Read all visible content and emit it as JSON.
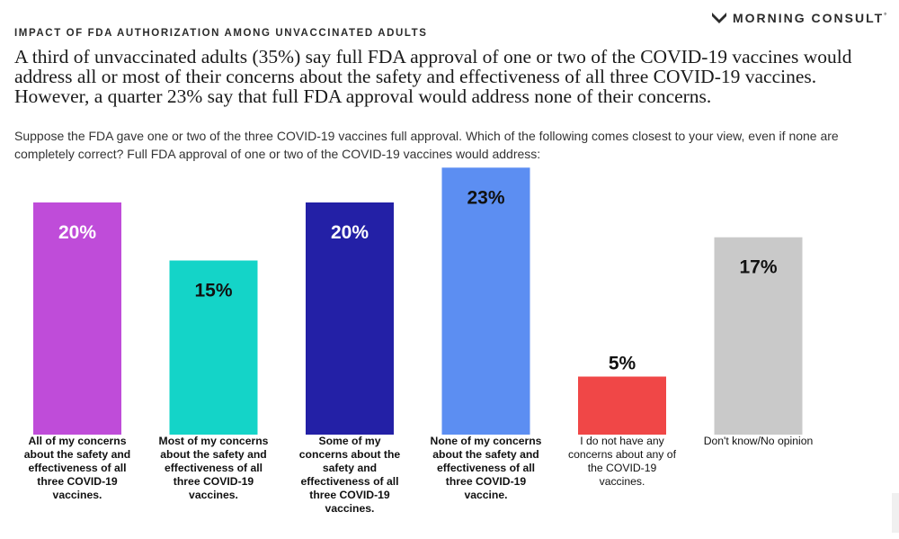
{
  "brand": {
    "name": "MORNING CONSULT",
    "mark": "°",
    "icon": "morning-consult-logo-icon"
  },
  "eyebrow": "IMPACT OF FDA AUTHORIZATION AMONG UNVACCINATED ADULTS",
  "headline": "A third of unvaccinated adults (35%) say full FDA approval of one or two of the COVID-19 vaccines would address all or most of their concerns about the safety and effectiveness of all three COVID-19 vaccines. However, a quarter 23% say that full FDA approval would address none of their concerns.",
  "question": "Suppose the FDA gave one or two of the three COVID-19 vaccines full approval. Which of the following comes closest to your view, even if none are completely correct? Full FDA approval of one or two of the COVID-19 vaccines would address:",
  "chart_data": {
    "type": "bar",
    "categories": [
      "All of my concerns about the safety and effectiveness of all three COVID-19 vaccines.",
      "Most of my concerns about the safety and effectiveness of all three COVID-19 vaccines.",
      "Some of my concerns about the safety and effectiveness of all three COVID-19 vaccines.",
      "None of my concerns about the safety and effectiveness of all three COVID-19 vaccine.",
      "I do not have any concerns about any of the COVID-19 vaccines.",
      "Don't know/No opinion"
    ],
    "values": [
      20,
      15,
      20,
      23,
      5,
      17
    ],
    "value_labels": [
      "20%",
      "15%",
      "20%",
      "23%",
      "5%",
      "17%"
    ],
    "label_bold": [
      true,
      true,
      true,
      true,
      false,
      false
    ],
    "colors": [
      "#bf4cd9",
      "#14d4c8",
      "#2320a6",
      "#5c8ef2",
      "#f04747",
      "#c9c9c9"
    ],
    "value_label_colors": [
      "#ffffff",
      "#111111",
      "#ffffff",
      "#111111",
      "#111111",
      "#111111"
    ],
    "value_label_position": [
      "inside",
      "inside",
      "inside",
      "inside",
      "above",
      "inside"
    ],
    "title": "",
    "xlabel": "",
    "ylabel": "",
    "ylim": [
      0,
      23
    ],
    "grid": false,
    "legend": "none"
  }
}
